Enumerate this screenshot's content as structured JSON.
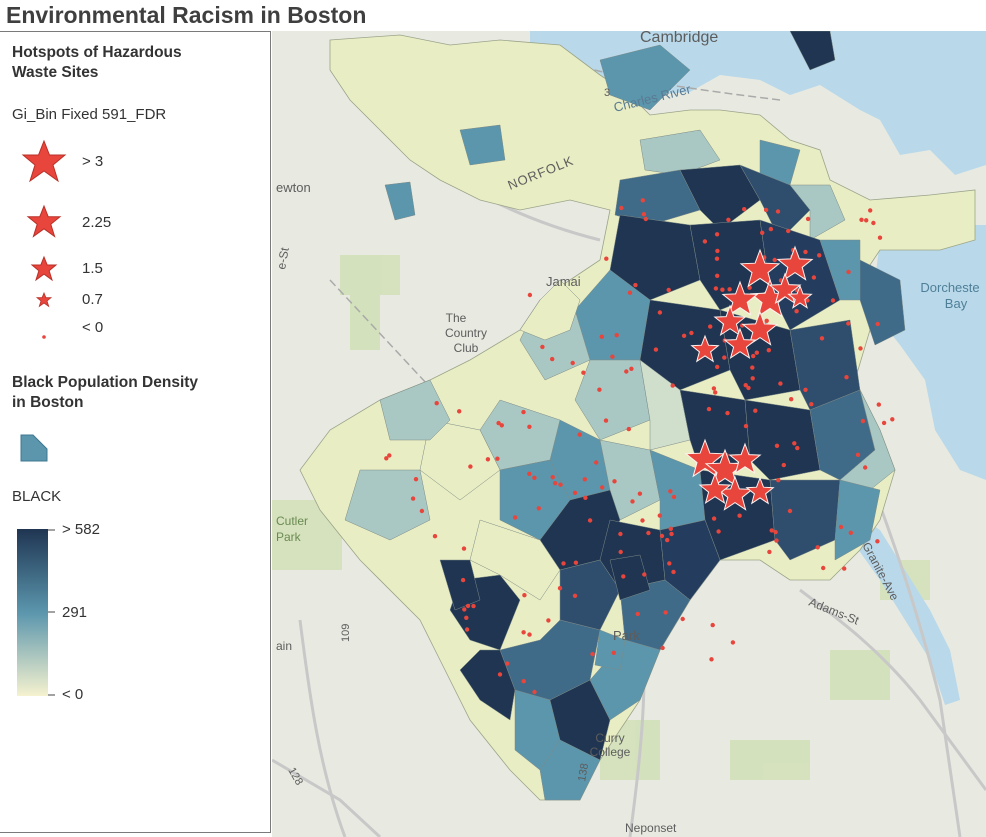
{
  "title": "Environmental Racism in Boston",
  "legend": {
    "hazard_title_line1": "Hotspots of Hazardous",
    "hazard_title_line2": "Waste Sites",
    "hazard_field": "Gi_Bin Fixed 591_FDR",
    "hazard_classes": [
      {
        "label": "> 3"
      },
      {
        "label": "2.25"
      },
      {
        "label": "1.5"
      },
      {
        "label": "0.7"
      },
      {
        "label": "< 0"
      }
    ],
    "density_title_line1": "Black Population Density",
    "density_title_line2": "in Boston",
    "density_field": "BLACK",
    "ramp_labels": {
      "high": "> 582",
      "mid": "291",
      "low": "< 0"
    },
    "colors": {
      "low": "#f5f2cf",
      "mid": "#5b96ad",
      "high": "#1f3552",
      "star": "#e8453c",
      "water": "#b9d9ea"
    }
  },
  "basemap_labels": {
    "cambridge": "Cambridge",
    "charles_river": "Charles River",
    "norfolk": "NORFOLK",
    "newton": "ewton",
    "jamaica": "Jamai",
    "country_club_1": "The",
    "country_club_2": "Country",
    "country_club_3": "Club",
    "dorchester_1": "Dorcheste",
    "dorchester_2": "Bay",
    "cutler_1": "Cutler",
    "cutler_2": "Park",
    "park": "Park",
    "adams": "Adams-St",
    "granite": "Granite-Ave",
    "curry_1": "Curry",
    "curry_2": "College",
    "neponset": "Neponset",
    "r109": "109",
    "r128": "128",
    "r138": "138",
    "r3": "3",
    "ain": "ain",
    "st": "e-St"
  }
}
